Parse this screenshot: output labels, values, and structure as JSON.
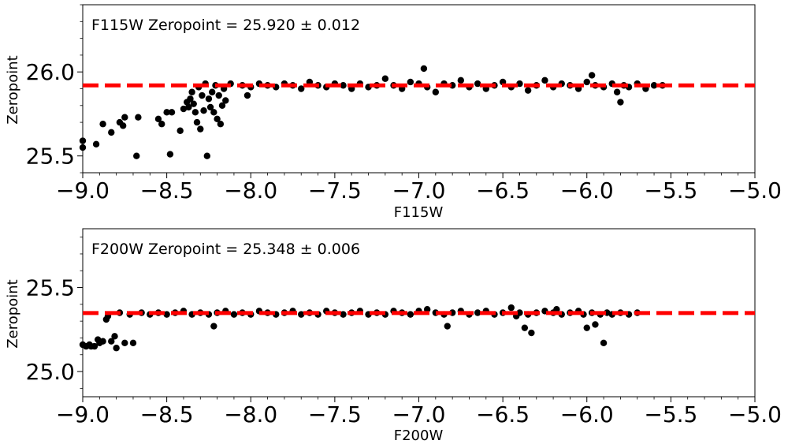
{
  "colors": {
    "points": "#000000",
    "fit_line": "#ff0000",
    "frame": "#000000",
    "background": "#ffffff"
  },
  "chart_data": [
    {
      "type": "scatter",
      "annotation": "F115W Zeropoint = 25.920 ± 0.012",
      "xlabel": "F115W",
      "ylabel": "Zeropoint",
      "xlim": [
        -9.0,
        -5.0
      ],
      "ylim": [
        25.4,
        26.4
      ],
      "xticks": [
        -9.0,
        -8.5,
        -8.0,
        -7.5,
        -7.0,
        -6.5,
        -6.0,
        -5.5,
        -5.0
      ],
      "xtick_labels": [
        "−9.0",
        "−8.5",
        "−8.0",
        "−7.5",
        "−7.0",
        "−6.5",
        "−6.0",
        "−5.5",
        "−5.0"
      ],
      "yticks": [
        25.5,
        26.0
      ],
      "ytick_labels": [
        "25.5",
        "26.0"
      ],
      "grid": false,
      "fit_line": {
        "y": 25.92,
        "style": "dashed",
        "color": "#ff0000"
      },
      "series": [
        {
          "values_note": "",
          "points": [
            [
              -9.0,
              25.59
            ],
            [
              -9.0,
              25.55
            ],
            [
              -8.92,
              25.57
            ],
            [
              -8.88,
              25.69
            ],
            [
              -8.83,
              25.64
            ],
            [
              -8.78,
              25.7
            ],
            [
              -8.76,
              25.68
            ],
            [
              -8.75,
              25.73
            ],
            [
              -8.68,
              25.5
            ],
            [
              -8.67,
              25.73
            ],
            [
              -8.55,
              25.72
            ],
            [
              -8.53,
              25.69
            ],
            [
              -8.5,
              25.76
            ],
            [
              -8.48,
              25.51
            ],
            [
              -8.47,
              25.76
            ],
            [
              -8.42,
              25.65
            ],
            [
              -8.4,
              25.78
            ],
            [
              -8.38,
              25.82
            ],
            [
              -8.37,
              25.79
            ],
            [
              -8.36,
              25.84
            ],
            [
              -8.35,
              25.88
            ],
            [
              -8.34,
              25.81
            ],
            [
              -8.33,
              25.76
            ],
            [
              -8.32,
              25.7
            ],
            [
              -8.31,
              25.91
            ],
            [
              -8.3,
              25.66
            ],
            [
              -8.29,
              25.86
            ],
            [
              -8.28,
              25.77
            ],
            [
              -8.27,
              25.93
            ],
            [
              -8.26,
              25.5
            ],
            [
              -8.25,
              25.84
            ],
            [
              -8.24,
              25.79
            ],
            [
              -8.23,
              25.88
            ],
            [
              -8.22,
              25.76
            ],
            [
              -8.21,
              25.92
            ],
            [
              -8.2,
              25.72
            ],
            [
              -8.19,
              25.86
            ],
            [
              -8.18,
              25.69
            ],
            [
              -8.17,
              25.8
            ],
            [
              -8.16,
              25.9
            ],
            [
              -8.15,
              25.83
            ],
            [
              -8.12,
              25.93
            ],
            [
              -8.05,
              25.92
            ],
            [
              -8.02,
              25.86
            ],
            [
              -8.0,
              25.91
            ],
            [
              -7.95,
              25.93
            ],
            [
              -7.9,
              25.92
            ],
            [
              -7.85,
              25.91
            ],
            [
              -7.8,
              25.93
            ],
            [
              -7.75,
              25.92
            ],
            [
              -7.7,
              25.9
            ],
            [
              -7.65,
              25.94
            ],
            [
              -7.6,
              25.92
            ],
            [
              -7.55,
              25.91
            ],
            [
              -7.5,
              25.93
            ],
            [
              -7.45,
              25.92
            ],
            [
              -7.4,
              25.9
            ],
            [
              -7.35,
              25.93
            ],
            [
              -7.3,
              25.91
            ],
            [
              -7.25,
              25.92
            ],
            [
              -7.2,
              25.96
            ],
            [
              -7.15,
              25.92
            ],
            [
              -7.1,
              25.9
            ],
            [
              -7.05,
              25.94
            ],
            [
              -7.0,
              25.93
            ],
            [
              -6.97,
              26.02
            ],
            [
              -6.95,
              25.91
            ],
            [
              -6.9,
              25.88
            ],
            [
              -6.85,
              25.93
            ],
            [
              -6.8,
              25.92
            ],
            [
              -6.75,
              25.95
            ],
            [
              -6.7,
              25.91
            ],
            [
              -6.65,
              25.93
            ],
            [
              -6.6,
              25.9
            ],
            [
              -6.55,
              25.92
            ],
            [
              -6.5,
              25.94
            ],
            [
              -6.45,
              25.91
            ],
            [
              -6.4,
              25.93
            ],
            [
              -6.35,
              25.89
            ],
            [
              -6.3,
              25.92
            ],
            [
              -6.25,
              25.95
            ],
            [
              -6.2,
              25.91
            ],
            [
              -6.15,
              25.93
            ],
            [
              -6.1,
              25.92
            ],
            [
              -6.05,
              25.9
            ],
            [
              -6.0,
              25.94
            ],
            [
              -5.97,
              25.98
            ],
            [
              -5.95,
              25.92
            ],
            [
              -5.9,
              25.91
            ],
            [
              -5.85,
              25.93
            ],
            [
              -5.82,
              25.88
            ],
            [
              -5.8,
              25.82
            ],
            [
              -5.78,
              25.92
            ],
            [
              -5.75,
              25.91
            ],
            [
              -5.7,
              25.93
            ],
            [
              -5.65,
              25.9
            ],
            [
              -5.6,
              25.92
            ],
            [
              -5.55,
              25.92
            ]
          ]
        }
      ]
    },
    {
      "type": "scatter",
      "annotation": "F200W Zeropoint = 25.348 ± 0.006",
      "xlabel": "F200W",
      "ylabel": "Zeropoint",
      "xlim": [
        -9.0,
        -5.0
      ],
      "ylim": [
        24.85,
        25.85
      ],
      "xticks": [
        -9.0,
        -8.5,
        -8.0,
        -7.5,
        -7.0,
        -6.5,
        -6.0,
        -5.5,
        -5.0
      ],
      "xtick_labels": [
        "−9.0",
        "−8.5",
        "−8.0",
        "−7.5",
        "−7.0",
        "−6.5",
        "−6.0",
        "−5.5",
        "−5.0"
      ],
      "yticks": [
        25.0,
        25.5
      ],
      "ytick_labels": [
        "25.0",
        "25.5"
      ],
      "grid": false,
      "fit_line": {
        "y": 25.348,
        "style": "dashed",
        "color": "#ff0000"
      },
      "series": [
        {
          "values_note": "",
          "points": [
            [
              -9.0,
              25.16
            ],
            [
              -8.98,
              25.15
            ],
            [
              -8.96,
              25.16
            ],
            [
              -8.95,
              25.15
            ],
            [
              -8.93,
              25.15
            ],
            [
              -8.91,
              25.19
            ],
            [
              -8.9,
              25.17
            ],
            [
              -8.88,
              25.18
            ],
            [
              -8.86,
              25.31
            ],
            [
              -8.85,
              25.33
            ],
            [
              -8.83,
              25.18
            ],
            [
              -8.81,
              25.21
            ],
            [
              -8.8,
              25.14
            ],
            [
              -8.78,
              25.35
            ],
            [
              -8.75,
              25.17
            ],
            [
              -8.72,
              25.34
            ],
            [
              -8.7,
              25.17
            ],
            [
              -8.65,
              25.35
            ],
            [
              -8.6,
              25.34
            ],
            [
              -8.55,
              25.35
            ],
            [
              -8.5,
              25.34
            ],
            [
              -8.45,
              25.35
            ],
            [
              -8.4,
              25.36
            ],
            [
              -8.35,
              25.34
            ],
            [
              -8.3,
              25.35
            ],
            [
              -8.25,
              25.34
            ],
            [
              -8.22,
              25.27
            ],
            [
              -8.2,
              25.35
            ],
            [
              -8.15,
              25.36
            ],
            [
              -8.1,
              25.34
            ],
            [
              -8.05,
              25.35
            ],
            [
              -8.0,
              25.34
            ],
            [
              -7.95,
              25.36
            ],
            [
              -7.9,
              25.35
            ],
            [
              -7.85,
              25.34
            ],
            [
              -7.8,
              25.35
            ],
            [
              -7.75,
              25.36
            ],
            [
              -7.7,
              25.34
            ],
            [
              -7.65,
              25.35
            ],
            [
              -7.6,
              25.34
            ],
            [
              -7.55,
              25.36
            ],
            [
              -7.5,
              25.35
            ],
            [
              -7.45,
              25.34
            ],
            [
              -7.4,
              25.35
            ],
            [
              -7.35,
              25.36
            ],
            [
              -7.3,
              25.34
            ],
            [
              -7.25,
              25.35
            ],
            [
              -7.2,
              25.34
            ],
            [
              -7.15,
              25.36
            ],
            [
              -7.1,
              25.35
            ],
            [
              -7.05,
              25.34
            ],
            [
              -7.0,
              25.36
            ],
            [
              -6.95,
              25.37
            ],
            [
              -6.9,
              25.35
            ],
            [
              -6.85,
              25.34
            ],
            [
              -6.83,
              25.27
            ],
            [
              -6.8,
              25.35
            ],
            [
              -6.75,
              25.36
            ],
            [
              -6.7,
              25.34
            ],
            [
              -6.65,
              25.35
            ],
            [
              -6.6,
              25.36
            ],
            [
              -6.55,
              25.34
            ],
            [
              -6.5,
              25.35
            ],
            [
              -6.45,
              25.38
            ],
            [
              -6.42,
              25.33
            ],
            [
              -6.4,
              25.35
            ],
            [
              -6.37,
              25.26
            ],
            [
              -6.35,
              25.34
            ],
            [
              -6.33,
              25.23
            ],
            [
              -6.3,
              25.35
            ],
            [
              -6.25,
              25.36
            ],
            [
              -6.2,
              25.35
            ],
            [
              -6.18,
              25.37
            ],
            [
              -6.15,
              25.34
            ],
            [
              -6.1,
              25.35
            ],
            [
              -6.05,
              25.36
            ],
            [
              -6.02,
              25.34
            ],
            [
              -6.0,
              25.26
            ],
            [
              -5.97,
              25.35
            ],
            [
              -5.95,
              25.28
            ],
            [
              -5.92,
              25.34
            ],
            [
              -5.9,
              25.17
            ],
            [
              -5.88,
              25.35
            ],
            [
              -5.85,
              25.34
            ],
            [
              -5.8,
              25.35
            ],
            [
              -5.75,
              25.34
            ],
            [
              -5.7,
              25.35
            ]
          ]
        }
      ]
    }
  ]
}
